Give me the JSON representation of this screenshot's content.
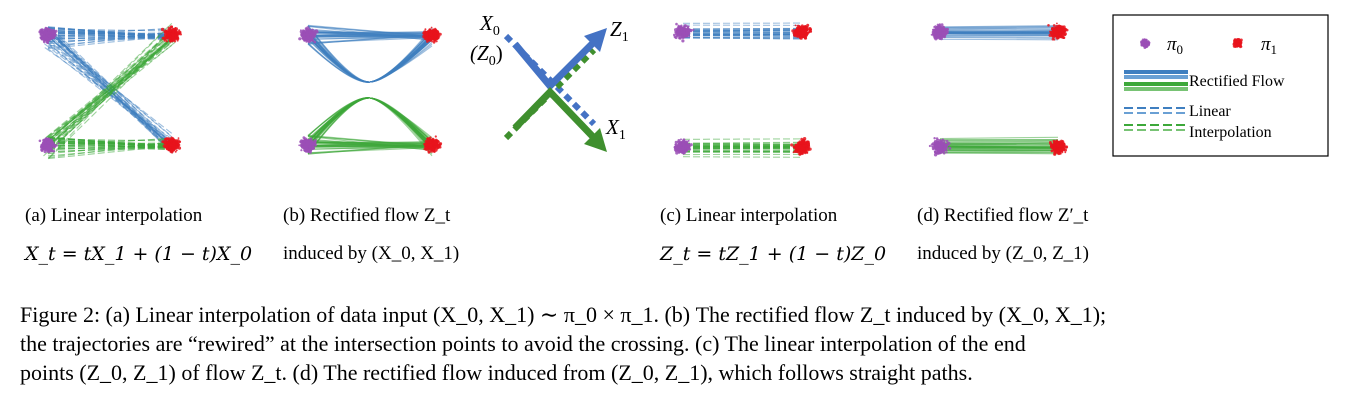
{
  "legend": {
    "pi0": "π",
    "pi0_sub": "0",
    "pi1": "π",
    "pi1_sub": "1",
    "rectified_flow": "Rectified Flow",
    "linear_line1": "Linear",
    "linear_line2": "Interpolation"
  },
  "diagram": {
    "x0": "X",
    "x0_sub": "0",
    "z0": "(Z",
    "z0_sub": "0",
    "z0_close": ")",
    "z1": "Z",
    "z1_sub": "1",
    "x1": "X",
    "x1_sub": "1"
  },
  "panels": [
    {
      "label": "(a) Linear interpolation",
      "formula": "X_t = tX_1 + (1 − t)X_0"
    },
    {
      "label": "(b) Rectified flow Z_t",
      "formula": "induced by (X_0, X_1)"
    },
    {
      "label": "(c) Linear interpolation",
      "formula": "Z_t = tZ_1 + (1 − t)Z_0"
    },
    {
      "label": "(d) Rectified flow Z′_t",
      "formula": "induced by (Z_0, Z_1)"
    }
  ],
  "caption": {
    "line1": "Figure 2: (a) Linear interpolation of data input (X_0, X_1) ∼ π_0 × π_1. (b) The rectified flow Z_t induced by (X_0, X_1);",
    "line2": "the trajectories are “rewired” at the intersection points to avoid the crossing. (c) The linear interpolation of the end",
    "line3": "points (Z_0, Z_1) of flow Z_t. (d) The rectified flow induced from (Z_0, Z_1), which follows straight paths."
  },
  "colors": {
    "pi0": "#9b4fb6",
    "pi1": "#e8141c",
    "blue": "#3f7fc0",
    "green": "#3da83a",
    "arrow_blue": "#4472c4",
    "arrow_green": "#3f8f2e"
  }
}
